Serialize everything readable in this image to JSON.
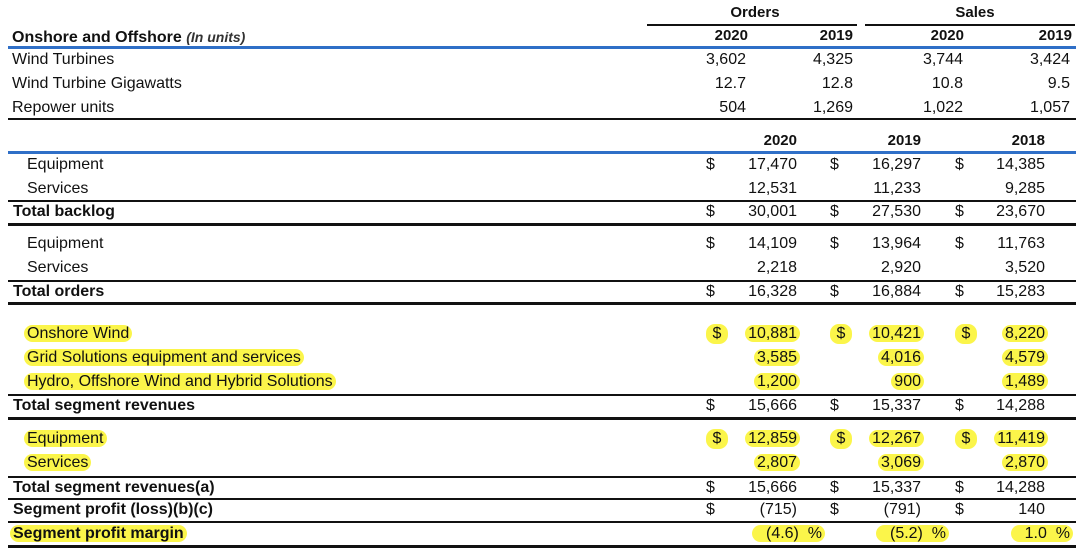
{
  "units_table": {
    "title": "Onshore and Offshore",
    "title_note": "(In units)",
    "group_headers": [
      "Orders",
      "Sales"
    ],
    "col_headers": [
      "2020",
      "2019",
      "2020",
      "2019"
    ],
    "rows": [
      {
        "label": "Wind Turbines",
        "values": [
          "3,602",
          "4,325",
          "3,744",
          "3,424"
        ]
      },
      {
        "label": "Wind Turbine Gigawatts",
        "values": [
          "12.7",
          "12.8",
          "10.8",
          "9.5"
        ]
      },
      {
        "label": "Repower units",
        "values": [
          "504",
          "1,269",
          "1,022",
          "1,057"
        ]
      }
    ]
  },
  "financial_table": {
    "years": [
      "2020",
      "2019",
      "2018"
    ],
    "dollar": "$",
    "backlog": [
      {
        "label": "Equipment",
        "values": [
          "17,470",
          "16,297",
          "14,385"
        ]
      },
      {
        "label": "Services",
        "values": [
          "12,531",
          "11,233",
          "9,285"
        ]
      }
    ],
    "backlog_total": {
      "label": "Total backlog",
      "values": [
        "30,001",
        "27,530",
        "23,670"
      ]
    },
    "orders": [
      {
        "label": "Equipment",
        "values": [
          "14,109",
          "13,964",
          "11,763"
        ]
      },
      {
        "label": "Services",
        "values": [
          "2,218",
          "2,920",
          "3,520"
        ]
      }
    ],
    "orders_total": {
      "label": "Total orders",
      "values": [
        "16,328",
        "16,884",
        "15,283"
      ]
    },
    "segments": [
      {
        "label": "Onshore Wind",
        "values": [
          "10,881",
          "10,421",
          "8,220"
        ]
      },
      {
        "label": "Grid Solutions equipment and services",
        "values": [
          "3,585",
          "4,016",
          "4,579"
        ]
      },
      {
        "label": "Hydro, Offshore Wind and Hybrid Solutions",
        "values": [
          "1,200",
          "900",
          "1,489"
        ]
      }
    ],
    "segment_total": {
      "label": "Total segment revenues",
      "values": [
        "15,666",
        "15,337",
        "14,288"
      ]
    },
    "revenue_split": [
      {
        "label": "Equipment",
        "values": [
          "12,859",
          "12,267",
          "11,419"
        ]
      },
      {
        "label": "Services",
        "values": [
          "2,807",
          "3,069",
          "2,870"
        ]
      }
    ],
    "revenue_total_a": {
      "label": "Total segment revenues(a)",
      "values": [
        "15,666",
        "15,337",
        "14,288"
      ]
    },
    "profit": {
      "label": "Segment profit (loss)(b)(c)",
      "values": [
        "(715)",
        "(791)",
        "140"
      ]
    },
    "margin": {
      "label": "Segment profit margin",
      "values": [
        "(4.6)",
        "(5.2)",
        "1.0"
      ],
      "pct": "%"
    }
  },
  "highlight_color": "#fbf54a",
  "accent_rule_color": "#2f6fc7"
}
